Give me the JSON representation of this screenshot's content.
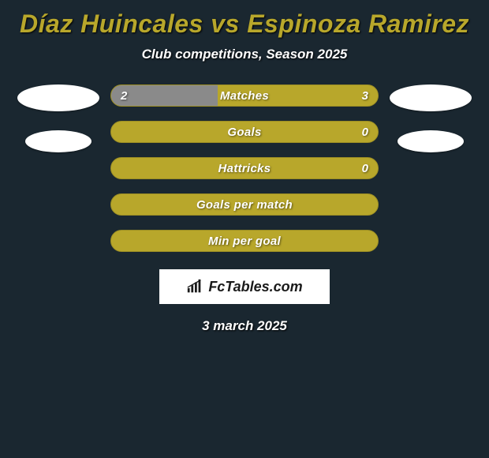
{
  "title": "Díaz Huincales vs Espinoza Ramirez",
  "subtitle": "Club competitions, Season 2025",
  "date": "3 march 2025",
  "logo": {
    "text": "FcTables.com"
  },
  "colors": {
    "background": "#1a2730",
    "bar_olive": "#b8a72b",
    "bar_gray": "#8a8a8a",
    "text_white": "#ffffff",
    "accent_title": "#b8a72b"
  },
  "bars": [
    {
      "label": "Matches",
      "left": "2",
      "right": "3",
      "left_fill_pct": 40,
      "show_values": true
    },
    {
      "label": "Goals",
      "left": "",
      "right": "0",
      "left_fill_pct": 0,
      "show_values": true
    },
    {
      "label": "Hattricks",
      "left": "",
      "right": "0",
      "left_fill_pct": 0,
      "show_values": true
    },
    {
      "label": "Goals per match",
      "left": "",
      "right": "",
      "left_fill_pct": 0,
      "show_values": false
    },
    {
      "label": "Min per goal",
      "left": "",
      "right": "",
      "left_fill_pct": 0,
      "show_values": false
    }
  ]
}
